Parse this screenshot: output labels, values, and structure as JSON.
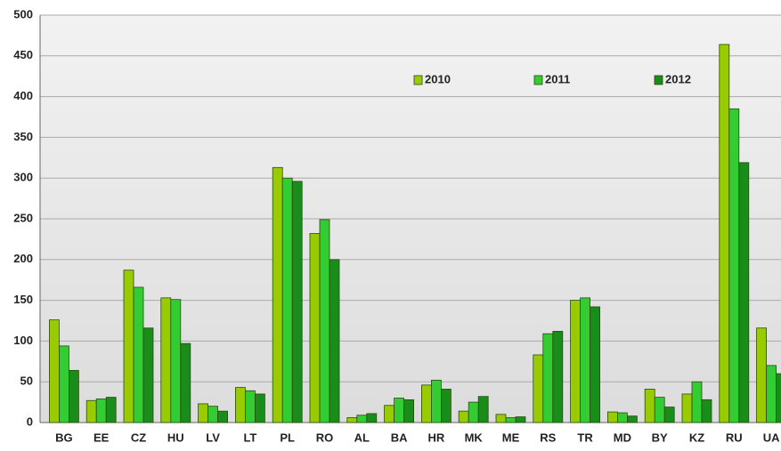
{
  "chart_data": {
    "type": "bar",
    "categories": [
      "BG",
      "EE",
      "CZ",
      "HU",
      "LV",
      "LT",
      "PL",
      "RO",
      "AL",
      "BA",
      "HR",
      "MK",
      "ME",
      "RS",
      "TR",
      "MD",
      "BY",
      "KZ",
      "RU",
      "UA"
    ],
    "series": [
      {
        "name": "2010",
        "color": "#99cc00",
        "values": [
          126,
          27,
          187,
          153,
          23,
          43,
          313,
          232,
          6,
          21,
          46,
          14,
          10,
          83,
          150,
          13,
          41,
          35,
          464,
          116
        ]
      },
      {
        "name": "2011",
        "color": "#33cc33",
        "values": [
          94,
          29,
          166,
          151,
          20,
          39,
          300,
          249,
          9,
          30,
          52,
          25,
          6,
          109,
          153,
          12,
          31,
          50,
          385,
          70
        ]
      },
      {
        "name": "2012",
        "color": "#1a8c1a",
        "values": [
          64,
          31,
          116,
          97,
          14,
          35,
          296,
          200,
          11,
          28,
          41,
          32,
          7,
          112,
          142,
          8,
          19,
          28,
          319,
          60
        ]
      }
    ],
    "ylim": [
      0,
      500
    ],
    "yticks": [
      0,
      50,
      100,
      150,
      200,
      250,
      300,
      350,
      400,
      450,
      500
    ],
    "grid": true,
    "legend": "top"
  }
}
